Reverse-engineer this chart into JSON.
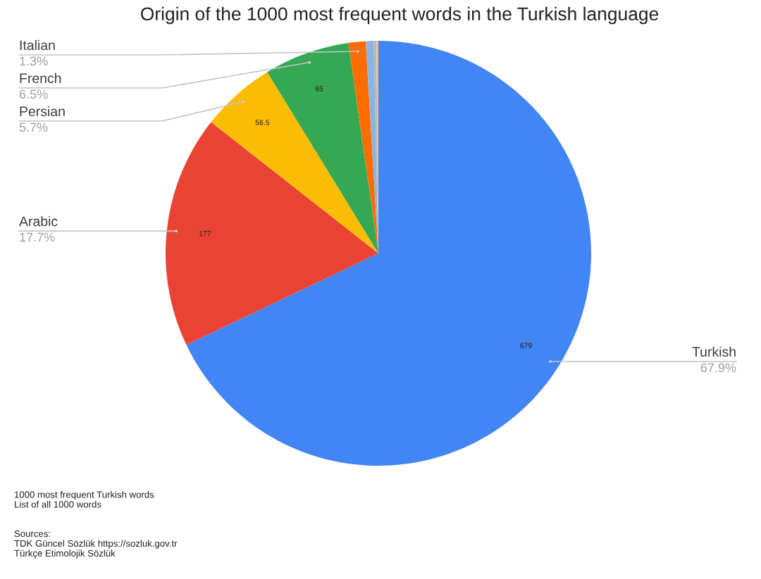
{
  "chart_data": {
    "type": "pie",
    "title": "Origin of the 1000 most frequent words in the Turkish language",
    "categories": [
      "Turkish",
      "Arabic",
      "Persian",
      "French",
      "Italian",
      null,
      null,
      null
    ],
    "values": [
      679,
      177,
      56.5,
      65,
      13,
      6,
      2,
      1.5
    ],
    "colors": [
      "#4285f4",
      "#ea4335",
      "#fbbc04",
      "#34a853",
      "#ff6d01",
      "#8ab4e6",
      "#b7b7b7",
      "#f6c26b"
    ],
    "value_labels": [
      "679",
      "177",
      "56.5",
      "65",
      null,
      null,
      null,
      null
    ],
    "annotations": [
      {
        "text": "67.9%",
        "x": "Turkish"
      },
      {
        "text": "17.7%",
        "x": "Arabic"
      },
      {
        "text": "5.7%",
        "x": "Persian"
      },
      {
        "text": "6.5%",
        "x": "French"
      },
      {
        "text": "1.3%",
        "x": "Italian"
      },
      "1000 most frequent Turkish words\nList of all 1000 words",
      "Sources:\nTDK Güncel Sözlük https://sozluk.gov.tr\nTürkçe Etimolojik Sözlük"
    ]
  }
}
